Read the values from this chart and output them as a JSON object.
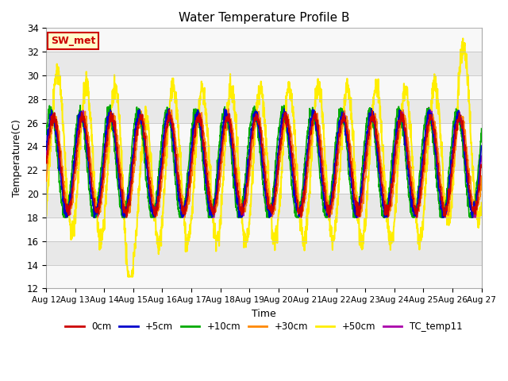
{
  "title": "Water Temperature Profile B",
  "xlabel": "Time",
  "ylabel": "Temperature(C)",
  "ylim": [
    12,
    34
  ],
  "xlim": [
    0,
    360
  ],
  "x_tick_labels": [
    "Aug 12",
    "Aug 13",
    "Aug 14",
    "Aug 15",
    "Aug 16",
    "Aug 17",
    "Aug 18",
    "Aug 19",
    "Aug 20",
    "Aug 21",
    "Aug 22",
    "Aug 23",
    "Aug 24",
    "Aug 25",
    "Aug 26",
    "Aug 27"
  ],
  "x_tick_positions": [
    0,
    24,
    48,
    72,
    96,
    120,
    144,
    168,
    192,
    216,
    240,
    264,
    288,
    312,
    336,
    360
  ],
  "y_ticks": [
    12,
    14,
    16,
    18,
    20,
    22,
    24,
    26,
    28,
    30,
    32,
    34
  ],
  "series": {
    "0cm": {
      "color": "#cc0000",
      "linewidth": 1.2
    },
    "+5cm": {
      "color": "#0000cc",
      "linewidth": 1.2
    },
    "+10cm": {
      "color": "#00aa00",
      "linewidth": 1.2
    },
    "+30cm": {
      "color": "#ff8800",
      "linewidth": 1.2
    },
    "+50cm": {
      "color": "#ffee00",
      "linewidth": 1.5
    },
    "TC_temp11": {
      "color": "#aa00aa",
      "linewidth": 1.2
    }
  },
  "band_colors": [
    "#f8f8f8",
    "#e8e8e8"
  ],
  "annotation_text": "SW_met",
  "annotation_bg": "#ffffcc",
  "annotation_border": "#cc0000"
}
